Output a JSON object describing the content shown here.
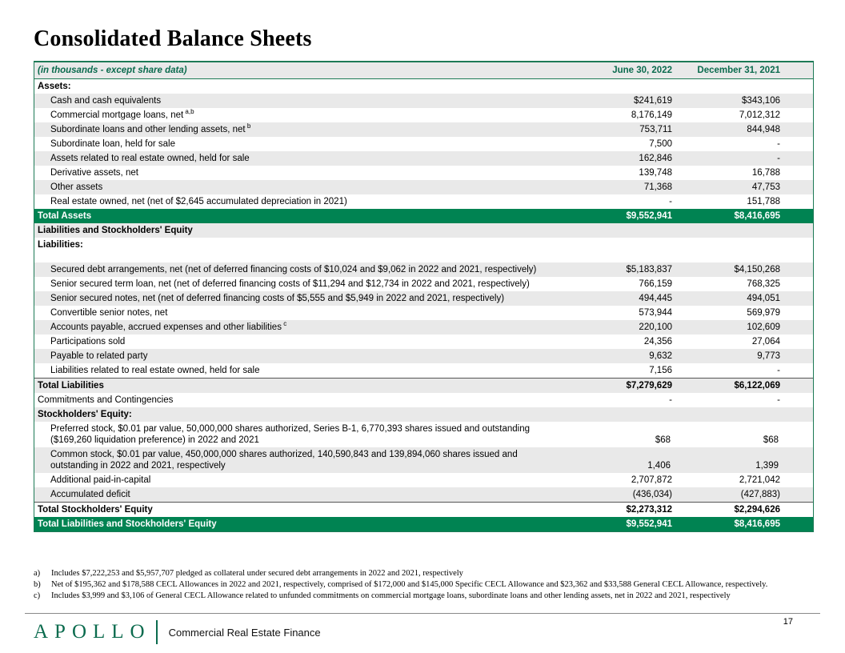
{
  "slide": {
    "title": "Consolidated Balance Sheets",
    "page_number": "17"
  },
  "colors": {
    "accent_green": "#0b6b4e",
    "total_row_green": "#008352",
    "row_shade": "#e9e9e9"
  },
  "table": {
    "header": {
      "caption": "(in thousands - except share data)",
      "col1": "June 30, 2022",
      "col2": "December 31, 2021"
    },
    "rows": [
      {
        "type": "section",
        "label": "Assets:",
        "shaded": false
      },
      {
        "type": "item",
        "indent": true,
        "label": "Cash and cash equivalents",
        "v1": "$241,619",
        "v2": "$343,106",
        "shaded": true
      },
      {
        "type": "item",
        "indent": true,
        "label": "Commercial mortgage loans, net",
        "sup": "a,b",
        "v1": "8,176,149",
        "v2": "7,012,312",
        "shaded": false
      },
      {
        "type": "item",
        "indent": true,
        "label": "Subordinate loans and other lending assets, net",
        "sup": "b",
        "v1": "753,711",
        "v2": "844,948",
        "shaded": true
      },
      {
        "type": "item",
        "indent": true,
        "label": "Subordinate loan, held for sale",
        "v1": "7,500",
        "v2": "-",
        "shaded": false
      },
      {
        "type": "item",
        "indent": true,
        "label": "Assets related to real estate owned, held for sale",
        "v1": "162,846",
        "v2": "-",
        "shaded": true
      },
      {
        "type": "item",
        "indent": true,
        "label": "Derivative assets, net",
        "v1": "139,748",
        "v2": "16,788",
        "shaded": false
      },
      {
        "type": "item",
        "indent": true,
        "label": "Other assets",
        "v1": "71,368",
        "v2": "47,753",
        "shaded": true
      },
      {
        "type": "item",
        "indent": true,
        "label": "Real estate owned, net (net of $2,645 accumulated depreciation in 2021)",
        "v1": "-",
        "v2": "151,788",
        "shaded": false
      },
      {
        "type": "total_green",
        "label": "Total Assets",
        "v1": "$9,552,941",
        "v2": "$8,416,695"
      },
      {
        "type": "section",
        "label": "Liabilities and Stockholders' Equity",
        "shaded": true
      },
      {
        "type": "section",
        "label": "Liabilities:",
        "shaded": false
      },
      {
        "type": "spacer"
      },
      {
        "type": "item",
        "indent": true,
        "label": "Secured debt arrangements, net (net of deferred financing costs of $10,024 and $9,062 in 2022 and 2021, respectively)",
        "v1": "$5,183,837",
        "v2": "$4,150,268",
        "shaded": true
      },
      {
        "type": "item",
        "indent": true,
        "label": "Senior secured term loan, net (net of deferred financing costs of $11,294 and $12,734 in 2022 and 2021, respectively)",
        "v1": "766,159",
        "v2": "768,325",
        "shaded": false
      },
      {
        "type": "item",
        "indent": true,
        "label": "Senior secured notes, net (net of deferred financing costs of $5,555 and $5,949 in 2022 and 2021, respectively)",
        "v1": "494,445",
        "v2": "494,051",
        "shaded": true
      },
      {
        "type": "item",
        "indent": true,
        "label": "Convertible senior notes, net",
        "v1": "573,944",
        "v2": "569,979",
        "shaded": false
      },
      {
        "type": "item",
        "indent": true,
        "label": "Accounts payable, accrued expenses and other liabilities",
        "sup": "c",
        "v1": "220,100",
        "v2": "102,609",
        "shaded": true
      },
      {
        "type": "item",
        "indent": true,
        "label": "Participations sold",
        "v1": "24,356",
        "v2": "27,064",
        "shaded": false
      },
      {
        "type": "item",
        "indent": true,
        "label": "Payable to related party",
        "v1": "9,632",
        "v2": "9,773",
        "shaded": true
      },
      {
        "type": "item",
        "indent": true,
        "label": "Liabilities related to real estate owned, held for sale",
        "v1": "7,156",
        "v2": "-",
        "shaded": false
      },
      {
        "type": "total_bold",
        "label": "Total Liabilities",
        "v1": "$7,279,629",
        "v2": "$6,122,069",
        "shaded": true,
        "border_top": true
      },
      {
        "type": "item",
        "indent": false,
        "label": "Commitments and Contingencies",
        "v1": "-",
        "v2": "-",
        "shaded": false
      },
      {
        "type": "section",
        "label": "Stockholders' Equity:",
        "shaded": true
      },
      {
        "type": "item",
        "indent": true,
        "multiline": true,
        "label": "Preferred stock, $0.01 par value, 50,000,000 shares authorized, Series B-1, 6,770,393 shares issued and outstanding ($169,260 liquidation preference) in 2022 and 2021",
        "v1": "$68",
        "v2": "$68",
        "shaded": false
      },
      {
        "type": "item",
        "indent": true,
        "multiline": true,
        "label": "Common stock, $0.01 par value, 450,000,000 shares authorized, 140,590,843 and 139,894,060 shares issued and outstanding in 2022 and 2021, respectively",
        "v1": "1,406",
        "v2": "1,399",
        "shaded": true
      },
      {
        "type": "item",
        "indent": true,
        "label": "Additional paid-in-capital",
        "v1": "2,707,872",
        "v2": "2,721,042",
        "shaded": false
      },
      {
        "type": "item",
        "indent": true,
        "label": "Accumulated deficit",
        "v1": "(436,034)",
        "v2": "(427,883)",
        "shaded": true
      },
      {
        "type": "total_bold",
        "label": "Total Stockholders' Equity",
        "v1": "$2,273,312",
        "v2": "$2,294,626",
        "shaded": false,
        "border_top": true
      },
      {
        "type": "total_green",
        "label": "Total Liabilities and Stockholders' Equity",
        "v1": "$9,552,941",
        "v2": "$8,416,695"
      }
    ]
  },
  "footnotes": [
    {
      "marker": "a)",
      "text": "Includes $7,222,253 and $5,957,707 pledged as collateral under secured debt arrangements in 2022 and 2021, respectively"
    },
    {
      "marker": "b)",
      "text": "Net of $195,362 and $178,588 CECL Allowances in 2022 and 2021, respectively, comprised of $172,000 and $145,000 Specific CECL Allowance and $23,362 and $33,588 General CECL Allowance, respectively."
    },
    {
      "marker": "c)",
      "text": "Includes $3,999 and $3,106 of General CECL Allowance related to unfunded commitments on commercial mortgage loans, subordinate loans and other lending assets, net in 2022 and 2021, respectively"
    }
  ],
  "footer": {
    "logo": "APOLLO",
    "tagline": "Commercial Real Estate Finance"
  }
}
